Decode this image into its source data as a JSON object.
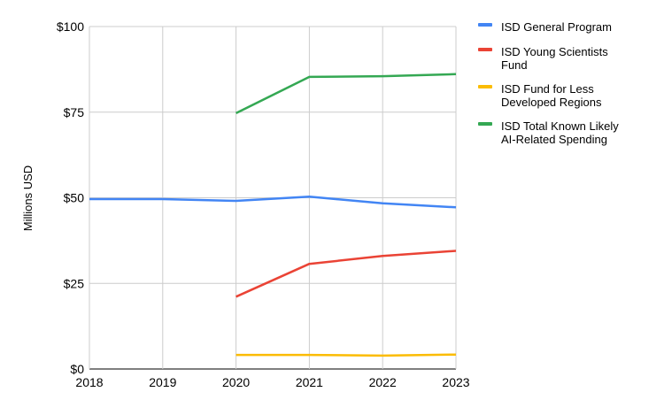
{
  "chart_data": {
    "type": "line",
    "title": "",
    "xlabel": "",
    "ylabel": "Millions USD",
    "x": [
      "2018",
      "2019",
      "2020",
      "2021",
      "2022",
      "2023"
    ],
    "ylim": [
      0,
      100
    ],
    "yticks": [
      0,
      25,
      50,
      75,
      100
    ],
    "ytick_labels": [
      "$0",
      "$25",
      "$50",
      "$75",
      "$100"
    ],
    "grid": true,
    "legend_position": "right",
    "series": [
      {
        "name": "ISD General Program",
        "name_lines": [
          "ISD General Program"
        ],
        "color": "#4285f4",
        "values": [
          49.6,
          49.6,
          49.1,
          50.3,
          48.4,
          47.2
        ]
      },
      {
        "name": "ISD Young Scientists Fund",
        "name_lines": [
          "ISD Young Scientists",
          "Fund"
        ],
        "color": "#ea4335",
        "values": [
          null,
          null,
          21.1,
          30.7,
          33.0,
          34.5
        ]
      },
      {
        "name": "ISD Fund for Less Developed Regions",
        "name_lines": [
          "ISD Fund for Less",
          "Developed Regions"
        ],
        "color": "#fbbc04",
        "values": [
          null,
          null,
          4.1,
          4.1,
          3.9,
          4.2
        ]
      },
      {
        "name": "ISD Total Known Likely AI-Related Spending",
        "name_lines": [
          "ISD Total Known Likely",
          "AI-Related Spending"
        ],
        "color": "#34a853",
        "values": [
          null,
          null,
          74.7,
          85.3,
          85.5,
          86.1
        ]
      }
    ]
  }
}
